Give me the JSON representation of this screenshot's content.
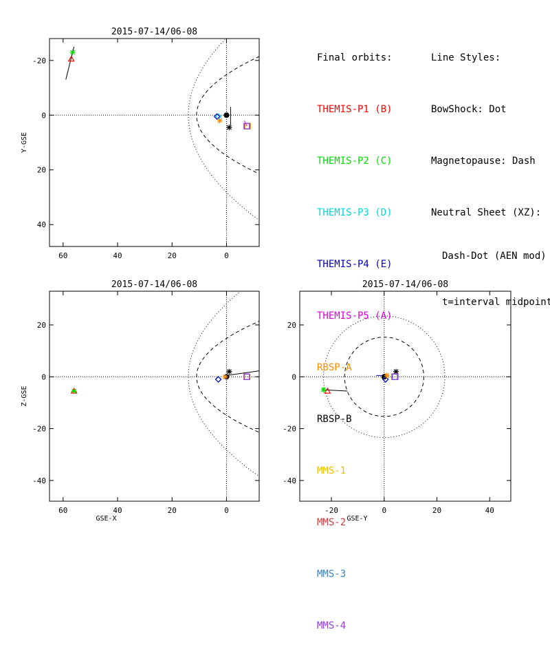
{
  "legend": {
    "orbits_title": "Final orbits:",
    "orbits": [
      {
        "label": "THEMIS-P1 (B)",
        "color": "#ff0000"
      },
      {
        "label": "THEMIS-P2 (C)",
        "color": "#00e000"
      },
      {
        "label": "THEMIS-P3 (D)",
        "color": "#00d8d8"
      },
      {
        "label": "THEMIS-P4 (E)",
        "color": "#0000c8"
      },
      {
        "label": "THEMIS-P5 (A)",
        "color": "#e000e0"
      },
      {
        "label": "RBSP-A",
        "color": "#ff8c00"
      },
      {
        "label": "RBSP-B",
        "color": "#000000"
      },
      {
        "label": "MMS-1",
        "color": "#f0c000"
      },
      {
        "label": "MMS-2",
        "color": "#d04040"
      },
      {
        "label": "MMS-3",
        "color": "#4080c0"
      },
      {
        "label": "MMS-4",
        "color": "#9040e0"
      }
    ],
    "styles_title": "Line Styles:",
    "styles": [
      "BowShock: Dot",
      "Magnetopause: Dash",
      "Neutral Sheet (XZ):",
      "Dash-Dot (AEN mod)",
      "t=interval midpoint"
    ]
  },
  "chart_data": [
    {
      "type": "scatter",
      "title": "2015-07-14/06-08",
      "xlabel": "",
      "ylabel": "Y-GSE",
      "xlim": [
        65,
        -12
      ],
      "ylim": [
        -28,
        48
      ],
      "xticks": [
        60,
        40,
        20,
        0
      ],
      "yticks": [
        -20,
        0,
        20,
        40
      ],
      "boundaries": {
        "bowshock": "dot",
        "magnetopause": "dash"
      },
      "spacecraft": [
        {
          "name": "THEMIS-P1 (B)",
          "x": 57,
          "y": -20.5,
          "marker": "triangle"
        },
        {
          "name": "THEMIS-P2 (C)",
          "x": 56.5,
          "y": -23,
          "marker": "asterisk"
        },
        {
          "name": "THEMIS-P3 (D)",
          "x": 3,
          "y": 0.5,
          "marker": "diamond"
        },
        {
          "name": "THEMIS-P4 (E)",
          "x": 3.5,
          "y": 0.5,
          "marker": "diamond"
        },
        {
          "name": "THEMIS-P5 (A)",
          "x": -7.5,
          "y": 4,
          "marker": "square"
        },
        {
          "name": "RBSP-A",
          "x": 2.5,
          "y": 2,
          "marker": "asterisk"
        },
        {
          "name": "RBSP-B",
          "x": -1,
          "y": 4.5,
          "marker": "asterisk"
        },
        {
          "name": "MMS-1",
          "x": -7.8,
          "y": 4,
          "marker": "square"
        },
        {
          "name": "MMS-2",
          "x": -7.6,
          "y": 4,
          "marker": "square"
        },
        {
          "name": "MMS-3",
          "x": -7.5,
          "y": 4,
          "marker": "square"
        },
        {
          "name": "MMS-4",
          "x": -7.4,
          "y": 4,
          "marker": "square"
        }
      ]
    },
    {
      "type": "scatter",
      "title": "2015-07-14/06-08",
      "xlabel": "GSE-X",
      "ylabel": "Z-GSE",
      "xlim": [
        65,
        -12
      ],
      "ylim": [
        -48,
        33
      ],
      "xticks": [
        60,
        40,
        20,
        0
      ],
      "yticks": [
        -40,
        -20,
        0,
        20
      ],
      "boundaries": {
        "bowshock": "dot",
        "magnetopause": "dash"
      },
      "spacecraft": [
        {
          "name": "THEMIS-P1 (B)",
          "x": 56,
          "y": -5.5,
          "marker": "triangle"
        },
        {
          "name": "THEMIS-P2 (C)",
          "x": 56,
          "y": -5.5,
          "marker": "asterisk"
        },
        {
          "name": "THEMIS-P3 (D)",
          "x": 3,
          "y": -1,
          "marker": "diamond"
        },
        {
          "name": "THEMIS-P4 (E)",
          "x": 3,
          "y": -1,
          "marker": "diamond"
        },
        {
          "name": "THEMIS-P5 (A)",
          "x": -7.5,
          "y": 0,
          "marker": "square"
        },
        {
          "name": "RBSP-A",
          "x": 0.5,
          "y": 0,
          "marker": "asterisk"
        },
        {
          "name": "RBSP-B",
          "x": -1,
          "y": 2,
          "marker": "asterisk"
        },
        {
          "name": "MMS-1",
          "x": -7.6,
          "y": 0,
          "marker": "square"
        },
        {
          "name": "MMS-2",
          "x": -7.4,
          "y": 0,
          "marker": "square"
        },
        {
          "name": "MMS-3",
          "x": -7.5,
          "y": 0,
          "marker": "square"
        },
        {
          "name": "MMS-4",
          "x": -7.5,
          "y": 0,
          "marker": "square"
        }
      ]
    },
    {
      "type": "scatter",
      "title": "2015-07-14/06-08",
      "xlabel": "GSE-Y",
      "ylabel": "",
      "xlim": [
        -32,
        48
      ],
      "ylim": [
        -48,
        33
      ],
      "xticks": [
        -20,
        0,
        20,
        40
      ],
      "yticks": [
        -40,
        -20,
        0,
        20
      ],
      "boundaries": {
        "bowshock": "dot",
        "magnetopause": "dash"
      },
      "spacecraft": [
        {
          "name": "THEMIS-P1 (B)",
          "x": -21.5,
          "y": -5.5,
          "marker": "triangle"
        },
        {
          "name": "THEMIS-P2 (C)",
          "x": -23,
          "y": -5,
          "marker": "asterisk"
        },
        {
          "name": "THEMIS-P3 (D)",
          "x": 0.5,
          "y": -1,
          "marker": "diamond"
        },
        {
          "name": "THEMIS-P4 (E)",
          "x": 0.5,
          "y": -1,
          "marker": "diamond"
        },
        {
          "name": "THEMIS-P5 (A)",
          "x": 4,
          "y": 0,
          "marker": "square"
        },
        {
          "name": "RBSP-A",
          "x": 1,
          "y": 0.5,
          "marker": "asterisk"
        },
        {
          "name": "RBSP-B",
          "x": 4.5,
          "y": 2,
          "marker": "asterisk"
        },
        {
          "name": "MMS-1",
          "x": 3.8,
          "y": 0,
          "marker": "square"
        },
        {
          "name": "MMS-2",
          "x": 4,
          "y": 0,
          "marker": "square"
        },
        {
          "name": "MMS-3",
          "x": 4.1,
          "y": 0,
          "marker": "square"
        },
        {
          "name": "MMS-4",
          "x": 4.2,
          "y": 0,
          "marker": "square"
        }
      ]
    }
  ]
}
